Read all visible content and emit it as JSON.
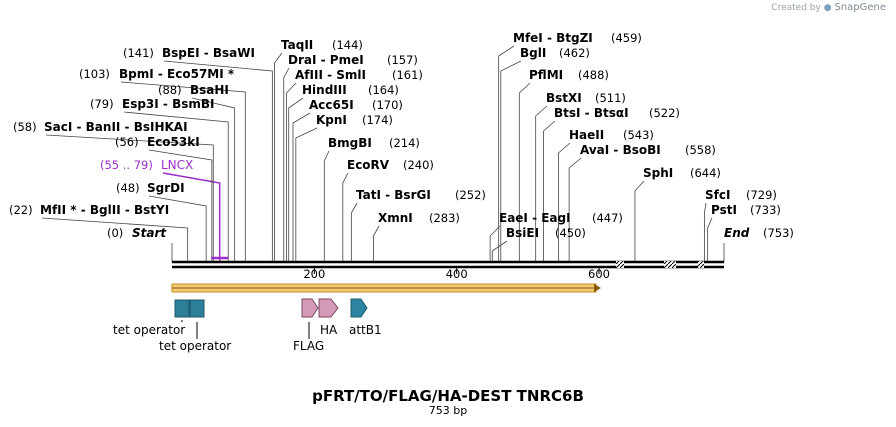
{
  "credit": {
    "prefix": "Created by",
    "brand": "SnapGene"
  },
  "plasmid": {
    "name": "pFRT/TO/FLAG/HA-DEST TNRC6B",
    "size_label": "753 bp",
    "length": 753
  },
  "axis": {
    "ticks": [
      200,
      400,
      600
    ]
  },
  "sites": [
    {
      "name": "Start",
      "pos": 0,
      "num": "(0)",
      "side": "left",
      "style": "end"
    },
    {
      "name": "MfII * - BglII - BstYI",
      "pos": 22,
      "num": "(22)",
      "side": "left"
    },
    {
      "name": "SgrDI",
      "pos": 48,
      "num": "(48)",
      "side": "left"
    },
    {
      "name": "LNCX",
      "pos": 67,
      "num": "(55 .. 79)",
      "side": "left",
      "style": "feature"
    },
    {
      "name": "Eco53kI",
      "pos": 56,
      "num": "(56)",
      "side": "left"
    },
    {
      "name": "SacI - BanII - BsIHKAI",
      "pos": 58,
      "num": "(58)",
      "side": "left"
    },
    {
      "name": "Esp3I - BsmBI",
      "pos": 79,
      "num": "(79)",
      "side": "left"
    },
    {
      "name": "BsaHI",
      "pos": 88,
      "num": "(88)",
      "side": "left"
    },
    {
      "name": "BpmI - Eco57MI *",
      "pos": 103,
      "num": "(103)",
      "side": "left"
    },
    {
      "name": "BspEI - BsaWI",
      "pos": 141,
      "num": "(141)",
      "side": "left"
    },
    {
      "name": "TaqII",
      "pos": 144,
      "num": "(144)",
      "side": "right"
    },
    {
      "name": "DraI - PmeI",
      "pos": 157,
      "num": "(157)",
      "side": "right"
    },
    {
      "name": "AfIII - SmlI",
      "pos": 161,
      "num": "(161)",
      "side": "right"
    },
    {
      "name": "HindIII",
      "pos": 164,
      "num": "(164)",
      "side": "right"
    },
    {
      "name": "Acc65I",
      "pos": 170,
      "num": "(170)",
      "side": "right"
    },
    {
      "name": "KpnI",
      "pos": 174,
      "num": "(174)",
      "side": "right"
    },
    {
      "name": "BmgBI",
      "pos": 214,
      "num": "(214)",
      "side": "right"
    },
    {
      "name": "EcoRV",
      "pos": 240,
      "num": "(240)",
      "side": "right"
    },
    {
      "name": "TatI - BsrGI",
      "pos": 252,
      "num": "(252)",
      "side": "right"
    },
    {
      "name": "XmnI",
      "pos": 283,
      "num": "(283)",
      "side": "right"
    },
    {
      "name": "MfeI - BtgZI",
      "pos": 459,
      "num": "(459)",
      "side": "right"
    },
    {
      "name": "BglI",
      "pos": 462,
      "num": "(462)",
      "side": "right"
    },
    {
      "name": "PflMI",
      "pos": 488,
      "num": "(488)",
      "side": "right"
    },
    {
      "name": "BstXI",
      "pos": 511,
      "num": "(511)",
      "side": "right"
    },
    {
      "name": "BtsI - BtsαI",
      "pos": 522,
      "num": "(522)",
      "side": "right"
    },
    {
      "name": "HaeII",
      "pos": 543,
      "num": "(543)",
      "side": "right"
    },
    {
      "name": "AvaI - BsoBI",
      "pos": 558,
      "num": "(558)",
      "side": "right"
    },
    {
      "name": "SphI",
      "pos": 644,
      "num": "(644)",
      "side": "right"
    },
    {
      "name": "EaeI - EagI",
      "pos": 447,
      "num": "(447)",
      "side": "right"
    },
    {
      "name": "BsiEI",
      "pos": 450,
      "num": "(450)",
      "side": "right"
    },
    {
      "name": "SfcI",
      "pos": 729,
      "num": "(729)",
      "side": "right"
    },
    {
      "name": "PstI",
      "pos": 733,
      "num": "(733)",
      "side": "right"
    },
    {
      "name": "End",
      "pos": 753,
      "num": "(753)",
      "side": "right",
      "style": "end"
    }
  ],
  "features": [
    {
      "label": "tet operator",
      "type": "box"
    },
    {
      "label": "tet operator",
      "type": "box"
    },
    {
      "label": "FLAG",
      "type": "arrow"
    },
    {
      "label": "HA",
      "type": "arrow"
    },
    {
      "label": "attB1",
      "type": "arrow"
    }
  ],
  "colors": {
    "line": "#000000",
    "feature_label": "#9b2ec9",
    "orf": "#f5c878",
    "orf_border": "#c48a1e",
    "tet": "#2d7f97",
    "tag": "#d59ab8",
    "attb": "#2d84a0"
  }
}
